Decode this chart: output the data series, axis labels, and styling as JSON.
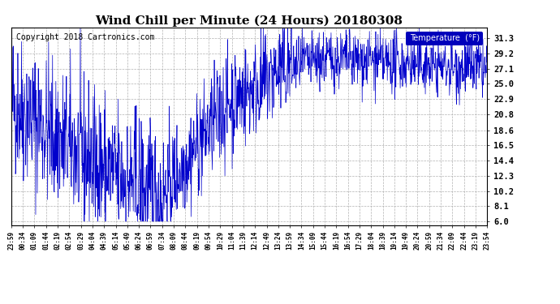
{
  "title": "Wind Chill per Minute (24 Hours) 20180308",
  "copyright_text": "Copyright 2018 Cartronics.com",
  "legend_label": "Temperature  (°F)",
  "line_color": "#0000cc",
  "legend_bg": "#0000bb",
  "legend_fg": "#ffffff",
  "yticks": [
    6.0,
    8.1,
    10.2,
    12.3,
    14.4,
    16.5,
    18.6,
    20.8,
    22.9,
    25.0,
    27.1,
    29.2,
    31.3
  ],
  "ymin": 5.5,
  "ymax": 32.8,
  "bg_color": "#ffffff",
  "plot_bg": "#ffffff",
  "grid_color": "#aaaaaa",
  "title_fontsize": 11,
  "copyright_fontsize": 7,
  "xtick_labels": [
    "23:59",
    "00:34",
    "01:09",
    "01:44",
    "02:19",
    "02:54",
    "03:29",
    "04:04",
    "04:39",
    "05:14",
    "05:49",
    "06:24",
    "06:59",
    "07:34",
    "08:09",
    "08:44",
    "09:19",
    "09:54",
    "10:29",
    "11:04",
    "11:39",
    "12:14",
    "12:49",
    "13:24",
    "13:59",
    "14:34",
    "15:09",
    "15:44",
    "16:19",
    "16:54",
    "17:29",
    "18:04",
    "18:39",
    "19:14",
    "19:49",
    "20:24",
    "20:59",
    "21:34",
    "22:09",
    "22:44",
    "23:19",
    "23:54"
  ],
  "n_minutes": 1440
}
